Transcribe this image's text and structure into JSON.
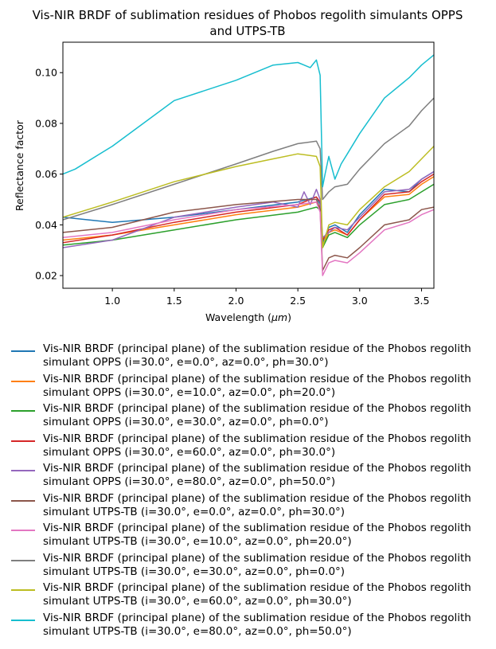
{
  "chart_data": {
    "type": "line",
    "title": "Vis-NIR BRDF of sublimation residues of Phobos regolith simulants OPPS and UTPS-TB",
    "title_lines": [
      "Vis-NIR BRDF of sublimation residues of Phobos regolith simulants OPPS",
      "and UTPS-TB"
    ],
    "xlabel_prefix": "Wavelength (",
    "xlabel_unit": "μm",
    "xlabel_suffix": ")",
    "ylabel": "Reflectance factor",
    "xlim": [
      0.6,
      3.6
    ],
    "ylim": [
      0.015,
      0.112
    ],
    "xticks": [
      1.0,
      1.5,
      2.0,
      2.5,
      3.0,
      3.5
    ],
    "xtick_labels": [
      "1.0",
      "1.5",
      "2.0",
      "2.5",
      "3.0",
      "3.5"
    ],
    "yticks": [
      0.02,
      0.04,
      0.06,
      0.08,
      0.1
    ],
    "ytick_labels": [
      "0.02",
      "0.04",
      "0.06",
      "0.08",
      "0.10"
    ],
    "grid": false,
    "legend_position": "below",
    "series": [
      {
        "name": "Vis-NIR BRDF (principal plane) of the sublimation residue of the Phobos regolith simulant OPPS (i=30.0°, e=0.0°, az=0.0°, ph=30.0°)",
        "line1": "Vis-NIR BRDF (principal plane) of the sublimation residue of the Phobos regolith",
        "line2": "simulant OPPS (i=30.0°, e=0.0°, az=0.0°, ph=30.0°)",
        "color": "#1f77b4",
        "x": [
          0.6,
          1.0,
          1.5,
          2.0,
          2.5,
          2.65,
          2.68,
          2.7,
          2.75,
          2.8,
          2.9,
          3.0,
          3.2,
          3.4,
          3.5,
          3.6
        ],
        "y": [
          0.043,
          0.041,
          0.043,
          0.046,
          0.049,
          0.051,
          0.048,
          0.033,
          0.039,
          0.04,
          0.037,
          0.044,
          0.054,
          0.053,
          0.058,
          0.061
        ]
      },
      {
        "name": "Vis-NIR BRDF (principal plane) of the sublimation residue of the Phobos regolith simulant OPPS (i=30.0°, e=10.0°, az=0.0°, ph=20.0°)",
        "line1": "Vis-NIR BRDF (principal plane) of the sublimation residue of the Phobos regolith",
        "line2": "simulant OPPS (i=30.0°, e=10.0°, az=0.0°, ph=20.0°)",
        "color": "#ff7f0e",
        "x": [
          0.6,
          1.0,
          1.5,
          2.0,
          2.5,
          2.65,
          2.68,
          2.7,
          2.75,
          2.8,
          2.9,
          3.0,
          3.2,
          3.4,
          3.5,
          3.6
        ],
        "y": [
          0.034,
          0.036,
          0.04,
          0.044,
          0.047,
          0.049,
          0.047,
          0.032,
          0.037,
          0.038,
          0.036,
          0.042,
          0.051,
          0.052,
          0.056,
          0.059
        ]
      },
      {
        "name": "Vis-NIR BRDF (principal plane) of the sublimation residue of the Phobos regolith simulant OPPS (i=30.0°, e=30.0°, az=0.0°, ph=0.0°)",
        "line1": "Vis-NIR BRDF (principal plane) of the sublimation residue of the Phobos regolith",
        "line2": "simulant OPPS (i=30.0°, e=30.0°, az=0.0°, ph=0.0°)",
        "color": "#2ca02c",
        "x": [
          0.6,
          1.0,
          1.5,
          2.0,
          2.5,
          2.65,
          2.68,
          2.7,
          2.75,
          2.8,
          2.9,
          3.0,
          3.2,
          3.4,
          3.5,
          3.6
        ],
        "y": [
          0.032,
          0.034,
          0.038,
          0.042,
          0.045,
          0.047,
          0.046,
          0.031,
          0.036,
          0.037,
          0.035,
          0.04,
          0.048,
          0.05,
          0.053,
          0.056
        ]
      },
      {
        "name": "Vis-NIR BRDF (principal plane) of the sublimation residue of the Phobos regolith simulant OPPS (i=30.0°, e=60.0°, az=0.0°, ph=30.0°)",
        "line1": "Vis-NIR BRDF (principal plane) of the sublimation residue of the Phobos regolith",
        "line2": "simulant OPPS (i=30.0°, e=60.0°, az=0.0°, ph=30.0°)",
        "color": "#d62728",
        "x": [
          0.6,
          1.0,
          1.5,
          2.0,
          2.5,
          2.65,
          2.68,
          2.7,
          2.75,
          2.8,
          2.9,
          3.0,
          3.2,
          3.4,
          3.5,
          3.6
        ],
        "y": [
          0.033,
          0.036,
          0.041,
          0.045,
          0.048,
          0.051,
          0.049,
          0.034,
          0.038,
          0.039,
          0.036,
          0.042,
          0.052,
          0.053,
          0.057,
          0.06
        ]
      },
      {
        "name": "Vis-NIR BRDF (principal plane) of the sublimation residue of the Phobos regolith simulant OPPS (i=30.0°, e=80.0°, az=0.0°, ph=50.0°)",
        "line1": "Vis-NIR BRDF (principal plane) of the sublimation residue of the Phobos regolith",
        "line2": "simulant OPPS (i=30.0°, e=80.0°, az=0.0°, ph=50.0°)",
        "color": "#9467bd",
        "x": [
          0.6,
          1.0,
          1.5,
          2.0,
          2.3,
          2.5,
          2.55,
          2.6,
          2.65,
          2.68,
          2.7,
          2.75,
          2.8,
          2.9,
          3.0,
          3.2,
          3.4,
          3.5,
          3.6
        ],
        "y": [
          0.031,
          0.034,
          0.043,
          0.047,
          0.049,
          0.047,
          0.053,
          0.048,
          0.054,
          0.05,
          0.035,
          0.037,
          0.039,
          0.038,
          0.043,
          0.053,
          0.054,
          0.058,
          0.061
        ]
      },
      {
        "name": "Vis-NIR BRDF (principal plane) of the sublimation residue of the Phobos regolith simulant UTPS-TB (i=30.0°, e=0.0°, az=0.0°, ph=30.0°)",
        "line1": "Vis-NIR BRDF (principal plane) of the sublimation residue of the Phobos regolith",
        "line2": "simulant UTPS-TB (i=30.0°, e=0.0°, az=0.0°, ph=30.0°)",
        "color": "#8c564b",
        "x": [
          0.6,
          1.0,
          1.5,
          2.0,
          2.5,
          2.65,
          2.68,
          2.7,
          2.75,
          2.8,
          2.9,
          3.0,
          3.2,
          3.4,
          3.5,
          3.6
        ],
        "y": [
          0.037,
          0.039,
          0.045,
          0.048,
          0.05,
          0.05,
          0.046,
          0.022,
          0.027,
          0.028,
          0.027,
          0.031,
          0.04,
          0.042,
          0.046,
          0.047
        ]
      },
      {
        "name": "Vis-NIR BRDF (principal plane) of the sublimation residue of the Phobos regolith simulant UTPS-TB (i=30.0°, e=10.0°, az=0.0°, ph=20.0°)",
        "line1": "Vis-NIR BRDF (principal plane) of the sublimation residue of the Phobos regolith",
        "line2": "simulant UTPS-TB (i=30.0°, e=10.0°, az=0.0°, ph=20.0°)",
        "color": "#e377c2",
        "x": [
          0.6,
          1.0,
          1.5,
          2.0,
          2.5,
          2.65,
          2.68,
          2.7,
          2.75,
          2.8,
          2.9,
          3.0,
          3.2,
          3.4,
          3.5,
          3.6
        ],
        "y": [
          0.035,
          0.037,
          0.042,
          0.046,
          0.048,
          0.049,
          0.045,
          0.02,
          0.025,
          0.026,
          0.025,
          0.029,
          0.038,
          0.041,
          0.044,
          0.046
        ]
      },
      {
        "name": "Vis-NIR BRDF (principal plane) of the sublimation residue of the Phobos regolith simulant UTPS-TB (i=30.0°, e=30.0°, az=0.0°, ph=0.0°)",
        "line1": "Vis-NIR BRDF (principal plane) of the sublimation residue of the Phobos regolith",
        "line2": "simulant UTPS-TB (i=30.0°, e=30.0°, az=0.0°, ph=0.0°)",
        "color": "#7f7f7f",
        "x": [
          0.6,
          1.0,
          1.5,
          2.0,
          2.3,
          2.5,
          2.65,
          2.68,
          2.7,
          2.75,
          2.8,
          2.9,
          3.0,
          3.2,
          3.4,
          3.5,
          3.6
        ],
        "y": [
          0.042,
          0.048,
          0.056,
          0.064,
          0.069,
          0.072,
          0.073,
          0.07,
          0.05,
          0.053,
          0.055,
          0.056,
          0.062,
          0.072,
          0.079,
          0.085,
          0.09
        ]
      },
      {
        "name": "Vis-NIR BRDF (principal plane) of the sublimation residue of the Phobos regolith simulant UTPS-TB (i=30.0°, e=60.0°, az=0.0°, ph=30.0°)",
        "line1": "Vis-NIR BRDF (principal plane) of the sublimation residue of the Phobos regolith",
        "line2": "simulant UTPS-TB (i=30.0°, e=60.0°, az=0.0°, ph=30.0°)",
        "color": "#bcbd22",
        "x": [
          0.6,
          1.0,
          1.5,
          2.0,
          2.3,
          2.5,
          2.65,
          2.68,
          2.7,
          2.75,
          2.8,
          2.9,
          3.0,
          3.2,
          3.4,
          3.5,
          3.6
        ],
        "y": [
          0.043,
          0.049,
          0.057,
          0.063,
          0.066,
          0.068,
          0.067,
          0.063,
          0.031,
          0.04,
          0.041,
          0.04,
          0.046,
          0.055,
          0.061,
          0.066,
          0.071
        ]
      },
      {
        "name": "Vis-NIR BRDF (principal plane) of the sublimation residue of the Phobos regolith simulant UTPS-TB (i=30.0°, e=80.0°, az=0.0°, ph=50.0°)",
        "line1": "Vis-NIR BRDF (principal plane) of the sublimation residue of the Phobos regolith",
        "line2": "simulant UTPS-TB (i=30.0°, e=80.0°, az=0.0°, ph=50.0°)",
        "color": "#17becf",
        "x": [
          0.6,
          0.7,
          1.0,
          1.5,
          2.0,
          2.3,
          2.5,
          2.6,
          2.65,
          2.68,
          2.7,
          2.72,
          2.75,
          2.8,
          2.85,
          2.9,
          3.0,
          3.2,
          3.4,
          3.5,
          3.6
        ],
        "y": [
          0.06,
          0.062,
          0.071,
          0.089,
          0.097,
          0.103,
          0.104,
          0.102,
          0.105,
          0.099,
          0.055,
          0.06,
          0.067,
          0.058,
          0.064,
          0.068,
          0.076,
          0.09,
          0.098,
          0.103,
          0.107
        ]
      }
    ]
  }
}
